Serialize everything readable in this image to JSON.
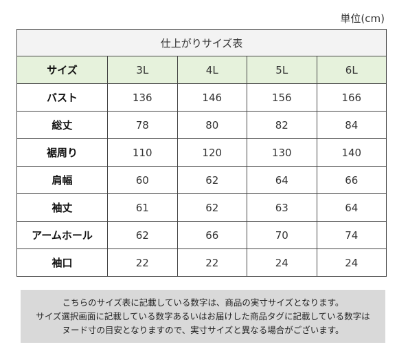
{
  "unit_label": "単位(cm)",
  "table": {
    "title": "仕上がりサイズ表",
    "header_label": "サイズ",
    "sizes": [
      "3L",
      "4L",
      "5L",
      "6L"
    ],
    "rows": [
      {
        "label": "バスト",
        "values": [
          "136",
          "146",
          "156",
          "166"
        ]
      },
      {
        "label": "総丈",
        "values": [
          "78",
          "80",
          "82",
          "84"
        ]
      },
      {
        "label": "裾周り",
        "values": [
          "110",
          "120",
          "130",
          "140"
        ]
      },
      {
        "label": "肩幅",
        "values": [
          "60",
          "62",
          "64",
          "66"
        ]
      },
      {
        "label": "袖丈",
        "values": [
          "61",
          "62",
          "63",
          "64"
        ]
      },
      {
        "label": "アームホール",
        "values": [
          "62",
          "66",
          "70",
          "74"
        ]
      },
      {
        "label": "袖口",
        "values": [
          "22",
          "22",
          "24",
          "24"
        ]
      }
    ]
  },
  "note": {
    "lines": [
      "こちらのサイズ表に記載している数字は、商品の実寸サイズとなります。",
      "サイズ選択画面に記載している数字あるいはお届けした商品タグに記載している数字は",
      "ヌード寸の目安となりますので、実寸サイズと異なる場合がございます。"
    ]
  }
}
